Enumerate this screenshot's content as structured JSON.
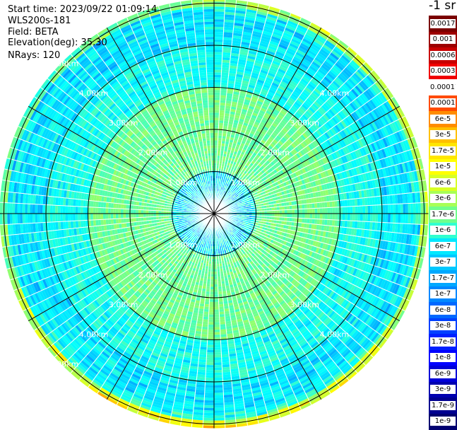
{
  "header": {
    "start_time": "Start time: 2023/09/22 01:09:14",
    "instrument": "WLS200s-181",
    "field": "Field: BETA",
    "elevation": "Elevation(deg): 35.30",
    "nrays": "NRays: 120"
  },
  "colorbar": {
    "unit": "-1 sr",
    "labels": [
      "0.0017",
      "0.001",
      "0.0006",
      "0.0003",
      "0.00017",
      "0.0001",
      "6e-5",
      "3e-5",
      "1.7e-5",
      "1e-5",
      "6e-6",
      "3e-6",
      "1.7e-6",
      "1e-6",
      "6e-7",
      "3e-7",
      "1.7e-7",
      "1e-7",
      "6e-8",
      "3e-8",
      "1.7e-8",
      "1e-8",
      "6e-9",
      "3e-9",
      "1.7e-9",
      "1e-9"
    ],
    "colors": [
      "#7a0000",
      "#9c0000",
      "#c80000",
      "#f00000",
      "#ffffff",
      "#ff4a00",
      "#ff8c00",
      "#ffc000",
      "#ffe600",
      "#ffff00",
      "#d8ff26",
      "#a8ff56",
      "#70ff8c",
      "#30ffd0",
      "#00e8ff",
      "#00c8ff",
      "#00a8ff",
      "#0088ff",
      "#0068ff",
      "#0040ff",
      "#0020ff",
      "#0000ff",
      "#0000d8",
      "#0000b0",
      "#000090",
      "#000070"
    ]
  },
  "chart_data": {
    "type": "heatmap",
    "subtype": "polar PPI scan (plan position indicator)",
    "field": "BETA",
    "nrays": 120,
    "range_ring_labels": [
      "1.00km",
      "2.00km",
      "3.00km",
      "4.00km",
      "5.00km"
    ],
    "range_rings_km": [
      1,
      2,
      3,
      4,
      5
    ],
    "max_range_km": 5.1,
    "radial_spokes_deg": [
      0,
      30,
      60,
      90,
      120,
      150,
      180,
      210,
      240,
      270,
      300,
      330
    ],
    "ring_label_bearings_deg": [
      45,
      135,
      225,
      315
    ],
    "color_scale": "log",
    "value_range": [
      1e-09,
      0.0017
    ],
    "radial_profile": [
      {
        "range_km": [
          0.0,
          1.0
        ],
        "approx_value": "1.7e-7",
        "color": "mixed cyan/blue speckle"
      },
      {
        "range_km": [
          1.0,
          2.0
        ],
        "approx_value": "1e-6",
        "color": "cyan"
      },
      {
        "range_km": [
          2.0,
          3.0
        ],
        "approx_value": "1e-6",
        "color": "cyan"
      },
      {
        "range_km": [
          3.0,
          4.0
        ],
        "approx_value": "3e-7",
        "color": "light blue"
      },
      {
        "range_km": [
          4.0,
          4.9
        ],
        "approx_value": "1.7e-7",
        "color": "blue"
      },
      {
        "range_km": [
          4.9,
          5.1
        ],
        "approx_value": "1.7e-6",
        "color": "yellow/orange rim"
      }
    ],
    "grid": true,
    "legend_position": "right",
    "colors": {
      "rings": "#000000",
      "spokes": "#000000",
      "ray_gaps": "#ffffff",
      "ring_labels": "#ffffff"
    }
  }
}
